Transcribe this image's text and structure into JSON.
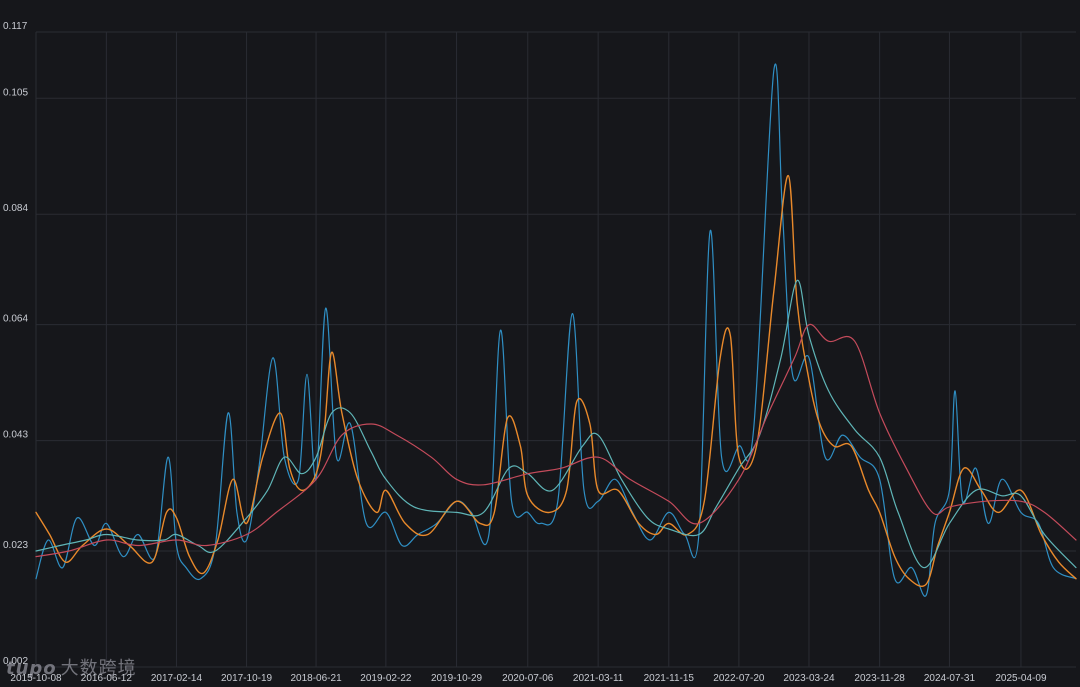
{
  "watermark": {
    "logo": "tupo",
    "text": "大数跨境"
  },
  "colors": {
    "background": "#16171b",
    "grid": "#2a2c33",
    "tick": "#c9ccd3"
  },
  "chart_data": {
    "type": "line",
    "title": "",
    "xlabel": "",
    "ylabel": "",
    "grid": true,
    "ylim": [
      0.002,
      0.117
    ],
    "yticks": [
      "0.002",
      "0.023",
      "0.043",
      "0.064",
      "0.084",
      "0.105",
      "0.117"
    ],
    "xlim": [
      "2015-10-08",
      "2025-10-20"
    ],
    "xticks": [
      "2015-10-08",
      "2016-06-12",
      "2017-02-14",
      "2017-10-19",
      "2018-06-21",
      "2019-02-22",
      "2019-10-29",
      "2020-07-06",
      "2021-03-11",
      "2021-11-15",
      "2022-07-20",
      "2023-03-24",
      "2023-11-28",
      "2024-07-31",
      "2025-04-09"
    ],
    "series": [
      {
        "color": "#2f8fc4",
        "width": 1.2,
        "points": [
          [
            "2015-10-08",
            0.018
          ],
          [
            "2015-11-20",
            0.025
          ],
          [
            "2016-01-10",
            0.02
          ],
          [
            "2016-03-01",
            0.029
          ],
          [
            "2016-05-01",
            0.024
          ],
          [
            "2016-06-12",
            0.028
          ],
          [
            "2016-08-10",
            0.022
          ],
          [
            "2016-10-01",
            0.026
          ],
          [
            "2016-12-01",
            0.022
          ],
          [
            "2017-01-15",
            0.04
          ],
          [
            "2017-02-14",
            0.024
          ],
          [
            "2017-03-20",
            0.02
          ],
          [
            "2017-05-10",
            0.018
          ],
          [
            "2017-07-01",
            0.024
          ],
          [
            "2017-08-15",
            0.048
          ],
          [
            "2017-09-15",
            0.03
          ],
          [
            "2017-10-19",
            0.025
          ],
          [
            "2017-12-01",
            0.038
          ],
          [
            "2018-01-20",
            0.058
          ],
          [
            "2018-03-01",
            0.04
          ],
          [
            "2018-04-20",
            0.036
          ],
          [
            "2018-05-20",
            0.055
          ],
          [
            "2018-06-21",
            0.036
          ],
          [
            "2018-07-25",
            0.067
          ],
          [
            "2018-09-01",
            0.04
          ],
          [
            "2018-10-20",
            0.046
          ],
          [
            "2018-12-15",
            0.028
          ],
          [
            "2019-02-22",
            0.03
          ],
          [
            "2019-04-20",
            0.024
          ],
          [
            "2019-06-15",
            0.026
          ],
          [
            "2019-08-20",
            0.028
          ],
          [
            "2019-10-29",
            0.032
          ],
          [
            "2019-12-20",
            0.03
          ],
          [
            "2020-02-20",
            0.026
          ],
          [
            "2020-04-01",
            0.063
          ],
          [
            "2020-05-10",
            0.032
          ],
          [
            "2020-07-06",
            0.03
          ],
          [
            "2020-08-20",
            0.028
          ],
          [
            "2020-10-20",
            0.032
          ],
          [
            "2020-12-10",
            0.066
          ],
          [
            "2021-01-20",
            0.034
          ],
          [
            "2021-03-11",
            0.032
          ],
          [
            "2021-05-10",
            0.036
          ],
          [
            "2021-07-10",
            0.03
          ],
          [
            "2021-09-10",
            0.025
          ],
          [
            "2021-11-15",
            0.03
          ],
          [
            "2022-01-10",
            0.026
          ],
          [
            "2022-03-01",
            0.026
          ],
          [
            "2022-04-10",
            0.081
          ],
          [
            "2022-05-20",
            0.04
          ],
          [
            "2022-07-20",
            0.042
          ],
          [
            "2022-09-10",
            0.045
          ],
          [
            "2022-11-20",
            0.11
          ],
          [
            "2022-12-20",
            0.085
          ],
          [
            "2023-01-25",
            0.055
          ],
          [
            "2023-03-24",
            0.058
          ],
          [
            "2023-05-20",
            0.04
          ],
          [
            "2023-07-20",
            0.044
          ],
          [
            "2023-09-20",
            0.04
          ],
          [
            "2023-11-28",
            0.036
          ],
          [
            "2024-01-20",
            0.018
          ],
          [
            "2024-03-20",
            0.02
          ],
          [
            "2024-05-10",
            0.015
          ],
          [
            "2024-06-10",
            0.028
          ],
          [
            "2024-07-31",
            0.034
          ],
          [
            "2024-08-20",
            0.052
          ],
          [
            "2024-09-15",
            0.032
          ],
          [
            "2024-11-01",
            0.038
          ],
          [
            "2024-12-15",
            0.028
          ],
          [
            "2025-02-01",
            0.036
          ],
          [
            "2025-04-09",
            0.03
          ],
          [
            "2025-06-10",
            0.028
          ],
          [
            "2025-08-01",
            0.02
          ],
          [
            "2025-10-20",
            0.018
          ]
        ]
      },
      {
        "color": "#e8892b",
        "width": 1.4,
        "points": [
          [
            "2015-10-08",
            0.03
          ],
          [
            "2015-11-25",
            0.026
          ],
          [
            "2016-01-20",
            0.021
          ],
          [
            "2016-03-20",
            0.024
          ],
          [
            "2016-06-12",
            0.027
          ],
          [
            "2016-09-01",
            0.024
          ],
          [
            "2016-11-20",
            0.021
          ],
          [
            "2017-01-10",
            0.03
          ],
          [
            "2017-02-14",
            0.029
          ],
          [
            "2017-04-01",
            0.022
          ],
          [
            "2017-05-20",
            0.019
          ],
          [
            "2017-07-10",
            0.025
          ],
          [
            "2017-09-01",
            0.036
          ],
          [
            "2017-10-19",
            0.028
          ],
          [
            "2017-12-15",
            0.04
          ],
          [
            "2018-02-15",
            0.048
          ],
          [
            "2018-03-20",
            0.038
          ],
          [
            "2018-05-01",
            0.034
          ],
          [
            "2018-06-21",
            0.037
          ],
          [
            "2018-07-20",
            0.045
          ],
          [
            "2018-08-15",
            0.059
          ],
          [
            "2018-09-20",
            0.048
          ],
          [
            "2018-11-15",
            0.036
          ],
          [
            "2019-01-20",
            0.03
          ],
          [
            "2019-02-22",
            0.034
          ],
          [
            "2019-05-01",
            0.028
          ],
          [
            "2019-07-20",
            0.026
          ],
          [
            "2019-10-29",
            0.032
          ],
          [
            "2020-01-20",
            0.028
          ],
          [
            "2020-03-10",
            0.03
          ],
          [
            "2020-04-25",
            0.047
          ],
          [
            "2020-06-10",
            0.042
          ],
          [
            "2020-07-06",
            0.033
          ],
          [
            "2020-09-20",
            0.03
          ],
          [
            "2020-11-20",
            0.034
          ],
          [
            "2020-12-25",
            0.05
          ],
          [
            "2021-02-10",
            0.046
          ],
          [
            "2021-03-11",
            0.034
          ],
          [
            "2021-05-20",
            0.034
          ],
          [
            "2021-08-01",
            0.028
          ],
          [
            "2021-10-01",
            0.026
          ],
          [
            "2021-11-15",
            0.028
          ],
          [
            "2022-01-20",
            0.026
          ],
          [
            "2022-03-20",
            0.032
          ],
          [
            "2022-05-15",
            0.058
          ],
          [
            "2022-06-20",
            0.062
          ],
          [
            "2022-07-20",
            0.04
          ],
          [
            "2022-09-20",
            0.042
          ],
          [
            "2022-11-20",
            0.07
          ],
          [
            "2023-01-10",
            0.091
          ],
          [
            "2023-02-10",
            0.068
          ],
          [
            "2023-03-24",
            0.054
          ],
          [
            "2023-05-01",
            0.046
          ],
          [
            "2023-06-20",
            0.042
          ],
          [
            "2023-08-20",
            0.042
          ],
          [
            "2023-10-20",
            0.034
          ],
          [
            "2023-11-28",
            0.03
          ],
          [
            "2024-01-20",
            0.022
          ],
          [
            "2024-03-10",
            0.018
          ],
          [
            "2024-05-10",
            0.017
          ],
          [
            "2024-06-20",
            0.024
          ],
          [
            "2024-07-31",
            0.03
          ],
          [
            "2024-09-20",
            0.038
          ],
          [
            "2024-11-20",
            0.034
          ],
          [
            "2025-01-20",
            0.03
          ],
          [
            "2025-04-09",
            0.034
          ],
          [
            "2025-06-20",
            0.026
          ],
          [
            "2025-08-20",
            0.021
          ],
          [
            "2025-10-20",
            0.018
          ]
        ]
      },
      {
        "color": "#5fb5b7",
        "width": 1.2,
        "points": [
          [
            "2015-10-08",
            0.023
          ],
          [
            "2016-01-01",
            0.024
          ],
          [
            "2016-04-01",
            0.025
          ],
          [
            "2016-06-12",
            0.026
          ],
          [
            "2016-10-01",
            0.025
          ],
          [
            "2017-01-01",
            0.025
          ],
          [
            "2017-02-14",
            0.026
          ],
          [
            "2017-05-01",
            0.024
          ],
          [
            "2017-07-01",
            0.023
          ],
          [
            "2017-10-19",
            0.029
          ],
          [
            "2018-01-01",
            0.034
          ],
          [
            "2018-03-01",
            0.04
          ],
          [
            "2018-05-01",
            0.037
          ],
          [
            "2018-06-21",
            0.04
          ],
          [
            "2018-08-15",
            0.048
          ],
          [
            "2018-10-20",
            0.048
          ],
          [
            "2019-01-01",
            0.041
          ],
          [
            "2019-02-22",
            0.036
          ],
          [
            "2019-06-01",
            0.031
          ],
          [
            "2019-10-29",
            0.03
          ],
          [
            "2020-02-01",
            0.03
          ],
          [
            "2020-05-01",
            0.038
          ],
          [
            "2020-07-06",
            0.037
          ],
          [
            "2020-10-01",
            0.034
          ],
          [
            "2021-01-15",
            0.042
          ],
          [
            "2021-03-11",
            0.044
          ],
          [
            "2021-06-01",
            0.036
          ],
          [
            "2021-09-01",
            0.029
          ],
          [
            "2021-11-15",
            0.027
          ],
          [
            "2022-03-01",
            0.026
          ],
          [
            "2022-05-01",
            0.031
          ],
          [
            "2022-07-20",
            0.038
          ],
          [
            "2022-10-01",
            0.044
          ],
          [
            "2022-12-15",
            0.058
          ],
          [
            "2023-02-10",
            0.072
          ],
          [
            "2023-03-24",
            0.062
          ],
          [
            "2023-06-01",
            0.052
          ],
          [
            "2023-09-01",
            0.045
          ],
          [
            "2023-11-28",
            0.04
          ],
          [
            "2024-02-01",
            0.03
          ],
          [
            "2024-05-01",
            0.02
          ],
          [
            "2024-07-31",
            0.028
          ],
          [
            "2024-11-01",
            0.034
          ],
          [
            "2025-02-01",
            0.033
          ],
          [
            "2025-04-09",
            0.033
          ],
          [
            "2025-07-01",
            0.026
          ],
          [
            "2025-10-20",
            0.02
          ]
        ]
      },
      {
        "color": "#c44b5b",
        "width": 1.2,
        "points": [
          [
            "2015-10-08",
            0.022
          ],
          [
            "2016-02-01",
            0.023
          ],
          [
            "2016-06-12",
            0.025
          ],
          [
            "2016-10-01",
            0.024
          ],
          [
            "2017-02-14",
            0.025
          ],
          [
            "2017-06-01",
            0.024
          ],
          [
            "2017-10-19",
            0.026
          ],
          [
            "2018-02-01",
            0.03
          ],
          [
            "2018-06-21",
            0.036
          ],
          [
            "2018-09-20",
            0.044
          ],
          [
            "2019-01-01",
            0.046
          ],
          [
            "2019-04-01",
            0.044
          ],
          [
            "2019-08-01",
            0.04
          ],
          [
            "2019-10-29",
            0.036
          ],
          [
            "2020-02-01",
            0.035
          ],
          [
            "2020-07-06",
            0.037
          ],
          [
            "2020-11-01",
            0.038
          ],
          [
            "2021-03-11",
            0.04
          ],
          [
            "2021-07-01",
            0.036
          ],
          [
            "2021-11-15",
            0.032
          ],
          [
            "2022-03-01",
            0.028
          ],
          [
            "2022-07-20",
            0.036
          ],
          [
            "2022-11-01",
            0.048
          ],
          [
            "2023-02-01",
            0.058
          ],
          [
            "2023-03-24",
            0.064
          ],
          [
            "2023-06-01",
            0.061
          ],
          [
            "2023-09-01",
            0.061
          ],
          [
            "2023-11-28",
            0.048
          ],
          [
            "2024-03-01",
            0.038
          ],
          [
            "2024-06-01",
            0.03
          ],
          [
            "2024-07-31",
            0.031
          ],
          [
            "2024-12-01",
            0.032
          ],
          [
            "2025-04-09",
            0.032
          ],
          [
            "2025-07-01",
            0.03
          ],
          [
            "2025-10-20",
            0.025
          ]
        ]
      }
    ]
  }
}
